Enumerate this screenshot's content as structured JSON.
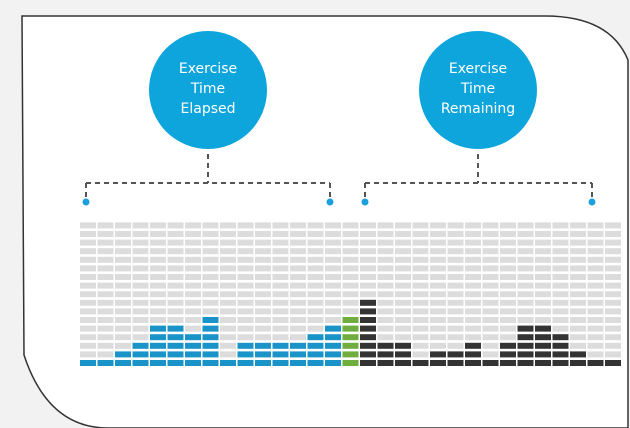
{
  "labels": {
    "elapsed": [
      "Exercise",
      "Time",
      "Elapsed"
    ],
    "remaining": [
      "Exercise",
      "Time",
      "Remaining"
    ]
  },
  "colors": {
    "background": "#f2f2f2",
    "panel": "#ffffff",
    "panel_border": "#333333",
    "bubble": "#0ea5dd",
    "bracket": "#555555",
    "bracket_dot": "#1ba0dd",
    "empty_cell": "#dcdcdc",
    "elapsed": "#1a93c8",
    "current": "#6fae3e",
    "remaining": "#333333"
  },
  "chart_data": {
    "type": "bar",
    "grid_rows": 17,
    "current_index": 15,
    "values": [
      1,
      1,
      2,
      3,
      5,
      5,
      4,
      6,
      1,
      3,
      3,
      3,
      3,
      4,
      5,
      6,
      8,
      3,
      3,
      1,
      2,
      2,
      3,
      1,
      3,
      5,
      5,
      4,
      2,
      1,
      1
    ]
  }
}
